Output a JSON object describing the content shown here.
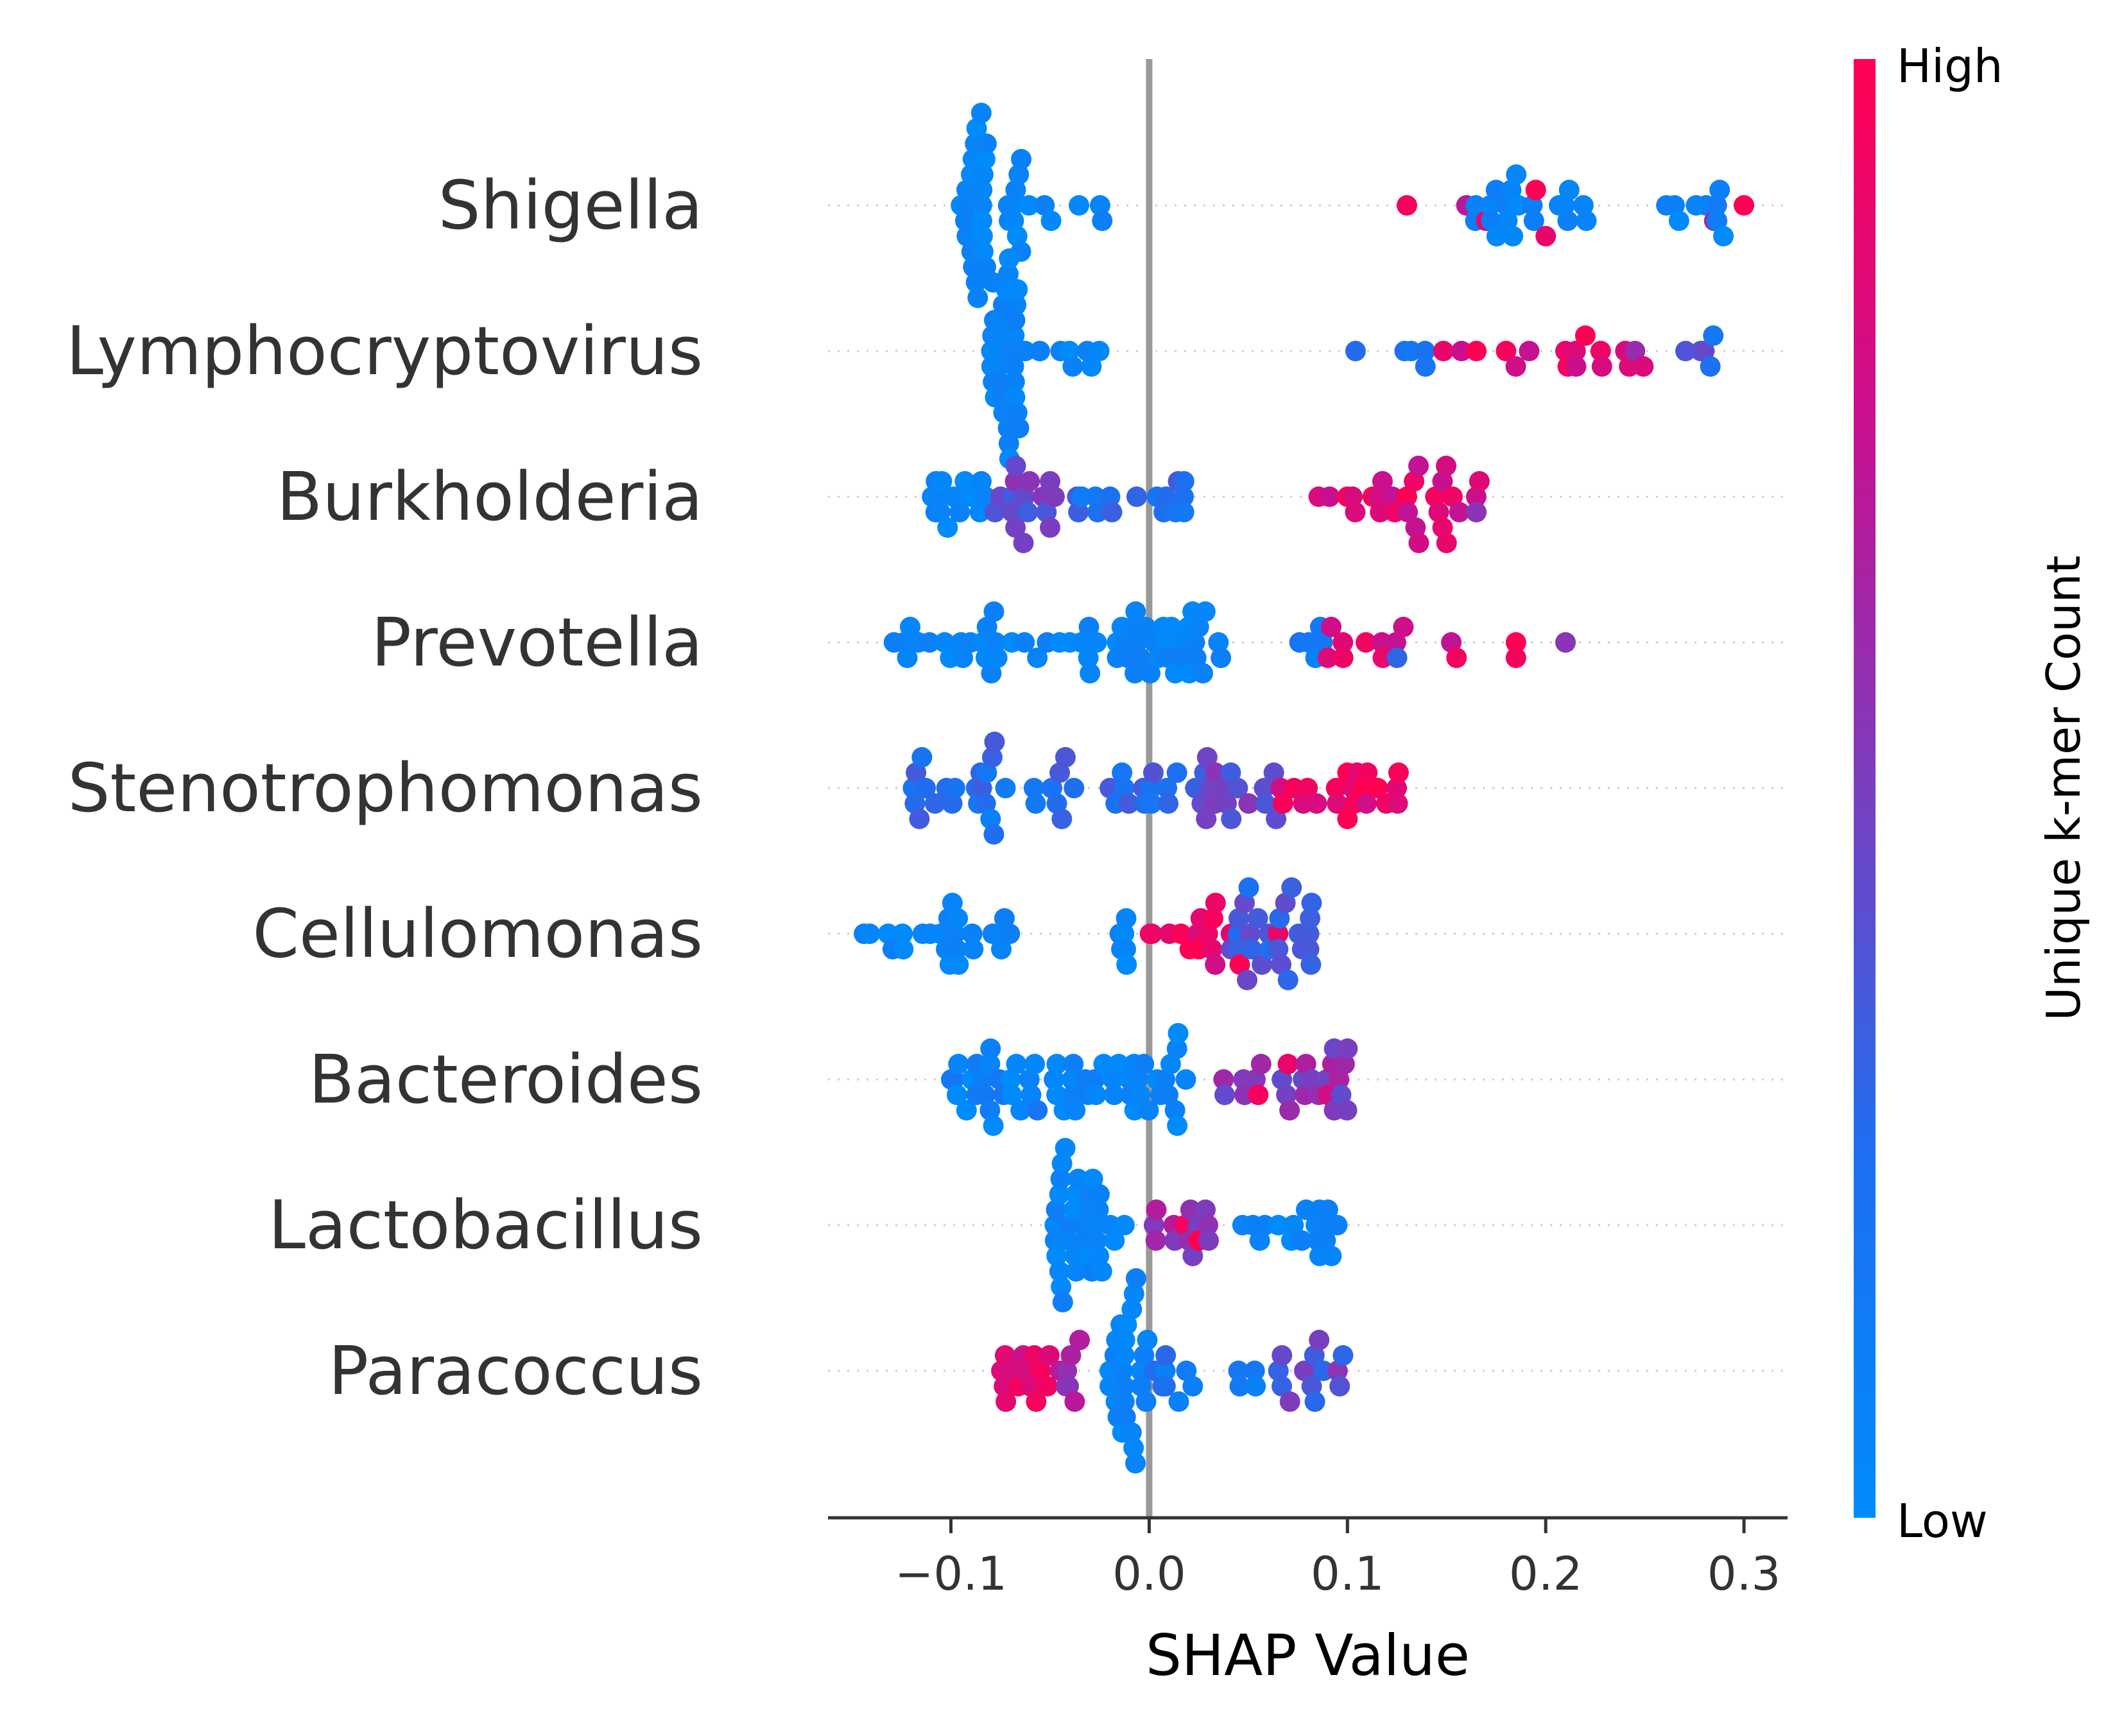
{
  "chart_data": {
    "type": "scatter",
    "subtype": "beeswarm",
    "xlabel": "SHAP Value",
    "colorbar": {
      "label": "Unique k-mer Count",
      "high_label": "High",
      "low_label": "Low",
      "colors": [
        "#008bfb",
        "#1e6ff0",
        "#7a3ec0",
        "#c8108f",
        "#ff0052"
      ]
    },
    "xlim": [
      -0.162,
      0.322
    ],
    "xticks": [
      -0.1,
      0.0,
      0.1,
      0.2,
      0.3
    ],
    "xtick_labels": [
      "−0.1",
      "0.0",
      "0.1",
      "0.2",
      "0.3"
    ],
    "zero_line": true,
    "categories": [
      "Shigella",
      "Lymphocryptovirus",
      "Burkholderia",
      "Prevotella",
      "Stenotrophomonas",
      "Cellulomonas",
      "Bacteroides",
      "Lactobacillus",
      "Paracoccus"
    ],
    "series": [
      {
        "clusters": [
          [
            -0.095,
            -0.082,
            0.0,
            26
          ],
          [
            -0.082,
            -0.065,
            0.0,
            8
          ],
          [
            -0.065,
            -0.015,
            0.0,
            8
          ],
          [
            0.155,
            0.235,
            0.02,
            20
          ],
          [
            0.255,
            0.3,
            0.1,
            8
          ]
        ],
        "highlights": [
          [
            0.13,
            0.95
          ],
          [
            0.16,
            0.7
          ],
          [
            0.17,
            0.9
          ],
          [
            0.195,
            1.0
          ],
          [
            0.2,
            0.9
          ],
          [
            0.265,
            0.1
          ],
          [
            0.285,
            0.6
          ],
          [
            0.3,
            1.0
          ]
        ]
      },
      {
        "clusters": [
          [
            -0.08,
            -0.065,
            0.0,
            30
          ],
          [
            -0.065,
            -0.015,
            0.0,
            8
          ],
          [
            0.1,
            0.14,
            0.15,
            5
          ],
          [
            0.145,
            0.25,
            0.85,
            12
          ],
          [
            0.27,
            0.29,
            0.3,
            4
          ]
        ],
        "highlights": [
          [
            0.165,
            1.0
          ],
          [
            0.18,
            0.95
          ],
          [
            0.21,
            0.9
          ],
          [
            0.22,
            1.0
          ],
          [
            0.245,
            0.6
          ],
          [
            0.28,
            0.45
          ]
        ]
      },
      {
        "clusters": [
          [
            -0.11,
            -0.08,
            0.02,
            14
          ],
          [
            -0.08,
            -0.045,
            0.45,
            14
          ],
          [
            -0.045,
            0.02,
            0.25,
            16
          ],
          [
            0.085,
            0.17,
            0.85,
            24
          ]
        ],
        "highlights": [
          [
            -0.05,
            0.5
          ],
          [
            -0.05,
            0.5
          ],
          [
            0.1,
            1.0
          ],
          [
            0.13,
            1.0
          ],
          [
            0.15,
            0.9
          ],
          [
            0.165,
            0.55
          ]
        ]
      },
      {
        "clusters": [
          [
            -0.13,
            -0.07,
            0.0,
            18
          ],
          [
            -0.07,
            -0.01,
            0.0,
            16
          ],
          [
            -0.01,
            0.04,
            0.0,
            26
          ],
          [
            0.06,
            0.09,
            0.1,
            5
          ],
          [
            0.09,
            0.16,
            0.85,
            10
          ]
        ],
        "highlights": [
          [
            0.125,
            0.3
          ],
          [
            0.185,
            1.0
          ],
          [
            0.185,
            0.95
          ],
          [
            0.21,
            0.55
          ],
          [
            0.155,
            0.95
          ]
        ]
      },
      {
        "clusters": [
          [
            -0.12,
            -0.05,
            0.25,
            22
          ],
          [
            -0.05,
            0.02,
            0.3,
            20
          ],
          [
            0.02,
            0.065,
            0.45,
            18
          ],
          [
            0.065,
            0.13,
            0.9,
            18
          ]
        ],
        "highlights": [
          [
            -0.08,
            0.1
          ],
          [
            0.1,
            1.0
          ],
          [
            0.1,
            1.0
          ],
          [
            0.11,
            0.95
          ]
        ]
      },
      {
        "clusters": [
          [
            -0.145,
            -0.07,
            0.0,
            24
          ],
          [
            -0.015,
            -0.01,
            0.0,
            6
          ],
          [
            0.0,
            0.05,
            0.9,
            14
          ],
          [
            0.04,
            0.085,
            0.35,
            26
          ]
        ],
        "highlights": [
          [
            0.025,
            1.0
          ],
          [
            0.065,
            0.9
          ]
        ]
      },
      {
        "clusters": [
          [
            -0.1,
            -0.055,
            0.08,
            24
          ],
          [
            -0.05,
            -0.01,
            0.05,
            16
          ],
          [
            -0.01,
            0.02,
            0.0,
            18
          ],
          [
            0.035,
            0.105,
            0.55,
            22
          ]
        ],
        "highlights": [
          [
            0.055,
            0.95
          ],
          [
            0.07,
            0.9
          ],
          [
            0.09,
            0.8
          ],
          [
            0.1,
            0.5
          ]
        ]
      },
      {
        "clusters": [
          [
            -0.048,
            -0.025,
            0.0,
            30
          ],
          [
            -0.025,
            -0.012,
            0.0,
            4
          ],
          [
            0.0,
            0.03,
            0.6,
            12
          ],
          [
            0.045,
            0.1,
            0.05,
            18
          ]
        ],
        "highlights": [
          [
            0.018,
            0.95
          ],
          [
            0.025,
            1.0
          ]
        ]
      },
      {
        "clusters": [
          [
            -0.075,
            -0.05,
            0.88,
            14
          ],
          [
            -0.05,
            -0.035,
            0.6,
            6
          ],
          [
            -0.02,
            0.0,
            0.0,
            26
          ],
          [
            0.0,
            0.06,
            0.2,
            12
          ],
          [
            0.06,
            0.1,
            0.4,
            12
          ]
        ],
        "highlights": [
          [
            -0.045,
            0.7
          ],
          [
            0.08,
            0.5
          ],
          [
            0.095,
            0.55
          ]
        ]
      }
    ]
  }
}
